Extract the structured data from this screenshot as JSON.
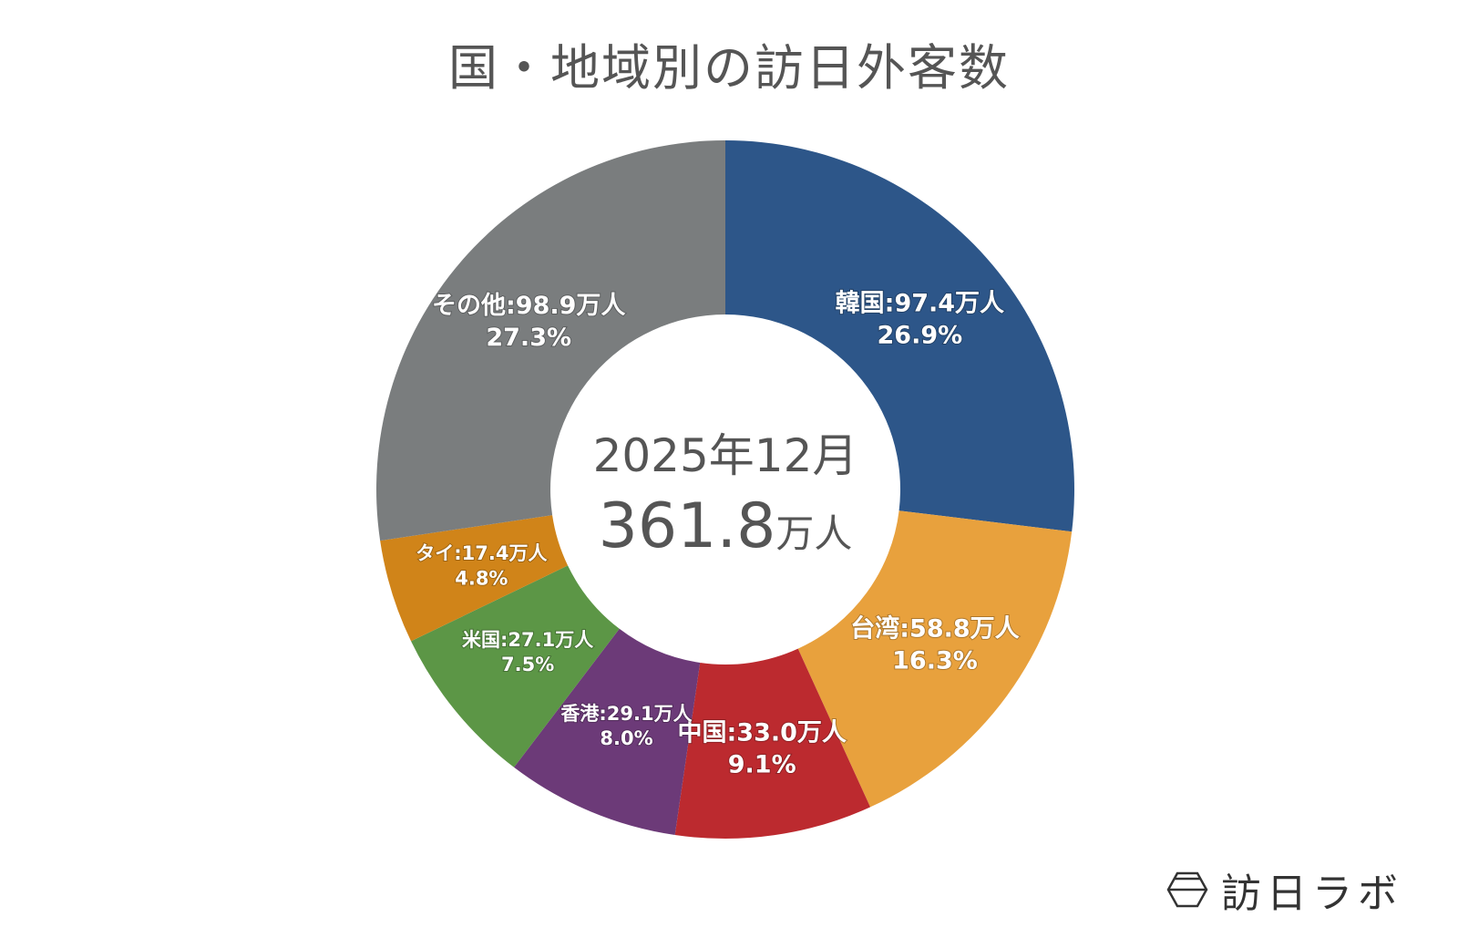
{
  "chart_data": {
    "type": "pie",
    "style": "donut",
    "title": "国・地域別の訪日外客数",
    "center_label": {
      "period": "2025年12月",
      "total_value": "361.8",
      "total_unit": "万人"
    },
    "unit": "万人",
    "slices": [
      {
        "label": "韓国",
        "value": 97.4,
        "percent": 26.9,
        "text": "韓国:97.4万人",
        "pct_text": "26.9%",
        "color": "#2d5689"
      },
      {
        "label": "台湾",
        "value": 58.8,
        "percent": 16.3,
        "text": "台湾:58.8万人",
        "pct_text": "16.3%",
        "color": "#e8a13d"
      },
      {
        "label": "中国",
        "value": 33.0,
        "percent": 9.1,
        "text": "中国:33.0万人",
        "pct_text": "9.1%",
        "color": "#bc2a2f"
      },
      {
        "label": "香港",
        "value": 29.1,
        "percent": 8.0,
        "text": "香港:29.1万人",
        "pct_text": "8.0%",
        "color": "#6c3a78"
      },
      {
        "label": "米国",
        "value": 27.1,
        "percent": 7.5,
        "text": "米国:27.1万人",
        "pct_text": "7.5%",
        "color": "#5c9646"
      },
      {
        "label": "タイ",
        "value": 17.4,
        "percent": 4.8,
        "text": "タイ:17.4万人",
        "pct_text": "4.8%",
        "color": "#d08419"
      },
      {
        "label": "その他",
        "value": 98.9,
        "percent": 27.3,
        "text": "その他:98.9万人",
        "pct_text": "27.3%",
        "color": "#7a7d7e"
      }
    ]
  },
  "logo": {
    "text": "訪日ラボ",
    "icon": "hexagon-logo-icon"
  }
}
